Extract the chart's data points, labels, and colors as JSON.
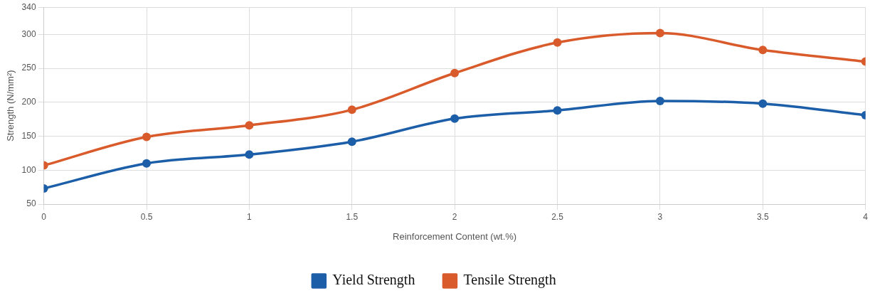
{
  "chart_data": {
    "type": "line",
    "xlabel": "Reinforcement Content (wt.%)",
    "ylabel": "Strength (N/mm²)",
    "x": [
      0,
      0.5,
      1,
      1.5,
      2,
      2.5,
      3,
      3.5,
      4
    ],
    "series": [
      {
        "name": "Yield Strength",
        "color": "#1c5ea8",
        "values": [
          73,
          110,
          123,
          142,
          176,
          188,
          202,
          198,
          181
        ]
      },
      {
        "name": "Tensile Strength",
        "color": "#d95b2b",
        "values": [
          107,
          149,
          166,
          189,
          243,
          288,
          302,
          277,
          260
        ]
      }
    ],
    "xlim": [
      0,
      4
    ],
    "xticks": [
      0,
      0.5,
      1,
      1.5,
      2,
      2.5,
      3,
      3.5,
      4
    ],
    "ylim": [
      50,
      340
    ],
    "yticks": [
      50,
      100,
      150,
      200,
      250,
      300,
      340
    ],
    "grid": true,
    "legend": "bottom",
    "marker": "circle",
    "line_style": "solid"
  }
}
